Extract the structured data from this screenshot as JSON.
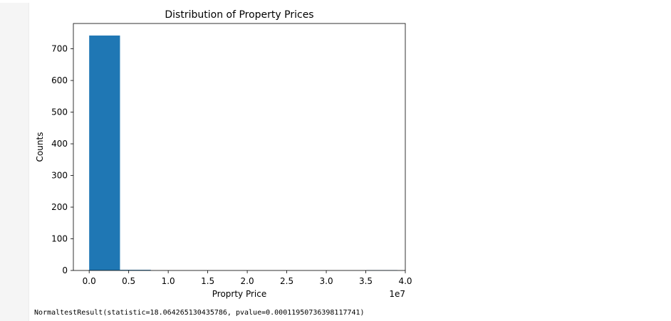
{
  "output": {
    "result_text": "NormaltestResult(statistic=18.064265130435786, pvalue=0.00011950736398117741)"
  },
  "chart_data": {
    "type": "bar",
    "title": "Distribution of Property Prices",
    "xlabel": "Proprty Price",
    "ylabel": "Counts",
    "x_offset_label": "1e7",
    "xlim": [
      -0.2,
      4.0
    ],
    "ylim": [
      0,
      780
    ],
    "x_ticks": [
      0.0,
      0.5,
      1.0,
      1.5,
      2.0,
      2.5,
      3.0,
      3.5,
      4.0
    ],
    "x_tick_labels": [
      "0.0",
      "0.5",
      "1.0",
      "1.5",
      "2.0",
      "2.5",
      "3.0",
      "3.5",
      "4.0"
    ],
    "y_ticks": [
      0,
      100,
      200,
      300,
      400,
      500,
      600,
      700
    ],
    "y_tick_labels": [
      "0",
      "100",
      "200",
      "300",
      "400",
      "500",
      "600",
      "700"
    ],
    "bins": [
      {
        "start": 0.0,
        "end": 0.39,
        "count": 742
      },
      {
        "start": 0.39,
        "end": 0.78,
        "count": 2
      },
      {
        "start": 0.78,
        "end": 1.17,
        "count": 0
      },
      {
        "start": 1.17,
        "end": 1.56,
        "count": 0
      },
      {
        "start": 1.56,
        "end": 1.95,
        "count": 0
      },
      {
        "start": 1.95,
        "end": 2.34,
        "count": 0
      },
      {
        "start": 2.34,
        "end": 2.73,
        "count": 0
      },
      {
        "start": 2.73,
        "end": 3.12,
        "count": 0
      },
      {
        "start": 3.12,
        "end": 3.51,
        "count": 0
      },
      {
        "start": 3.51,
        "end": 3.9,
        "count": 1
      }
    ],
    "bar_color": "#1f77b4",
    "grid": false,
    "legend": "none"
  }
}
